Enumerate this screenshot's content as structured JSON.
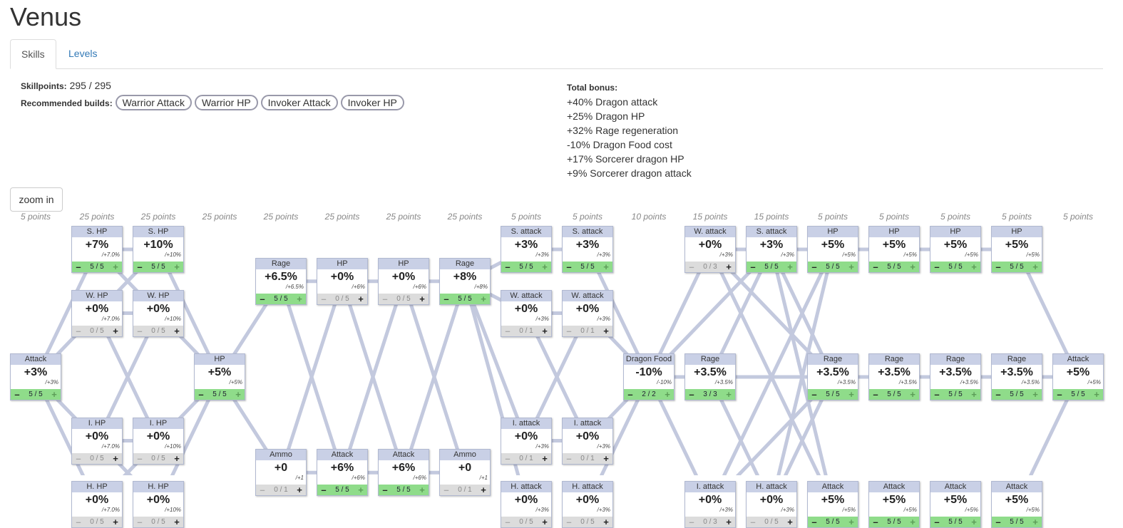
{
  "page": {
    "title": "Venus"
  },
  "tabs": [
    {
      "label": "Skills"
    },
    {
      "label": "Levels"
    }
  ],
  "skillpoints": {
    "label": "Skillpoints:",
    "value": "295 / 295"
  },
  "builds": {
    "label": "Recommended builds:",
    "items": [
      "Warrior Attack",
      "Warrior HP",
      "Invoker Attack",
      "Invoker HP"
    ]
  },
  "total": {
    "label": "Total bonus:",
    "lines": [
      "+40% Dragon attack",
      "+25% Dragon HP",
      "+32% Rage regeneration",
      "-10% Dragon Food cost",
      "+17% Sorcerer dragon HP",
      "+9% Sorcerer dragon attack"
    ]
  },
  "zoom_label": "zoom in",
  "columns": [
    "5 points",
    "25 points",
    "25 points",
    "25 points",
    "25 points",
    "25 points",
    "25 points",
    "25 points",
    "5 points",
    "5 points",
    "10 points",
    "15 points",
    "15 points",
    "5 points",
    "5 points",
    "5 points",
    "5 points",
    "5 points"
  ],
  "nodes": [
    {
      "id": "n1",
      "col": 0,
      "row": 2,
      "title": "Attack",
      "value": "+3%",
      "rate": "/+3%",
      "count": "5 / 5",
      "state": "full"
    },
    {
      "id": "n2a",
      "col": 1,
      "row": 0,
      "title": "S. HP",
      "value": "+7%",
      "rate": "/+7.0%",
      "count": "5 / 5",
      "state": "full"
    },
    {
      "id": "n2b",
      "col": 1,
      "row": 1,
      "title": "W. HP",
      "value": "+0%",
      "rate": "/+7.0%",
      "count": "0 / 5",
      "state": "empty"
    },
    {
      "id": "n2c",
      "col": 1,
      "row": 3,
      "title": "I. HP",
      "value": "+0%",
      "rate": "/+7.0%",
      "count": "0 / 5",
      "state": "empty"
    },
    {
      "id": "n2d",
      "col": 1,
      "row": 4,
      "title": "H. HP",
      "value": "+0%",
      "rate": "/+7.0%",
      "count": "0 / 5",
      "state": "empty"
    },
    {
      "id": "n3a",
      "col": 2,
      "row": 0,
      "title": "S. HP",
      "value": "+10%",
      "rate": "/+10%",
      "count": "5 / 5",
      "state": "full"
    },
    {
      "id": "n3b",
      "col": 2,
      "row": 1,
      "title": "W. HP",
      "value": "+0%",
      "rate": "/+10%",
      "count": "0 / 5",
      "state": "empty"
    },
    {
      "id": "n3c",
      "col": 2,
      "row": 3,
      "title": "I. HP",
      "value": "+0%",
      "rate": "/+10%",
      "count": "0 / 5",
      "state": "empty"
    },
    {
      "id": "n3d",
      "col": 2,
      "row": 4,
      "title": "H. HP",
      "value": "+0%",
      "rate": "/+10%",
      "count": "0 / 5",
      "state": "empty"
    },
    {
      "id": "n4",
      "col": 3,
      "row": 2,
      "title": "HP",
      "value": "+5%",
      "rate": "/+5%",
      "count": "5 / 5",
      "state": "full"
    },
    {
      "id": "n5a",
      "col": 4,
      "row": 0.5,
      "title": "Rage",
      "value": "+6.5%",
      "rate": "/+6.5%",
      "count": "5 / 5",
      "state": "full"
    },
    {
      "id": "n5b",
      "col": 4,
      "row": 3.5,
      "title": "Ammo",
      "value": "+0",
      "rate": "/+1",
      "count": "0 / 1",
      "state": "empty"
    },
    {
      "id": "n6a",
      "col": 5,
      "row": 0.5,
      "title": "HP",
      "value": "+0%",
      "rate": "/+6%",
      "count": "0 / 5",
      "state": "empty"
    },
    {
      "id": "n6b",
      "col": 5,
      "row": 3.5,
      "title": "Attack",
      "value": "+6%",
      "rate": "/+6%",
      "count": "5 / 5",
      "state": "full"
    },
    {
      "id": "n7a",
      "col": 6,
      "row": 0.5,
      "title": "HP",
      "value": "+0%",
      "rate": "/+6%",
      "count": "0 / 5",
      "state": "empty"
    },
    {
      "id": "n7b",
      "col": 6,
      "row": 3.5,
      "title": "Attack",
      "value": "+6%",
      "rate": "/+6%",
      "count": "5 / 5",
      "state": "full"
    },
    {
      "id": "n8a",
      "col": 7,
      "row": 0.5,
      "title": "Rage",
      "value": "+8%",
      "rate": "/+8%",
      "count": "5 / 5",
      "state": "full"
    },
    {
      "id": "n8b",
      "col": 7,
      "row": 3.5,
      "title": "Ammo",
      "value": "+0",
      "rate": "/+1",
      "count": "0 / 1",
      "state": "empty"
    },
    {
      "id": "n9a",
      "col": 8,
      "row": 0,
      "title": "S. attack",
      "value": "+3%",
      "rate": "/+3%",
      "count": "5 / 5",
      "state": "full"
    },
    {
      "id": "n9b",
      "col": 8,
      "row": 1,
      "title": "W. attack",
      "value": "+0%",
      "rate": "/+3%",
      "count": "0 / 1",
      "state": "empty"
    },
    {
      "id": "n9c",
      "col": 8,
      "row": 3,
      "title": "I. attack",
      "value": "+0%",
      "rate": "/+3%",
      "count": "0 / 1",
      "state": "empty"
    },
    {
      "id": "n9d",
      "col": 8,
      "row": 4,
      "title": "H. attack",
      "value": "+0%",
      "rate": "/+3%",
      "count": "0 / 5",
      "state": "empty"
    },
    {
      "id": "n10a",
      "col": 9,
      "row": 0,
      "title": "S. attack",
      "value": "+3%",
      "rate": "/+3%",
      "count": "5 / 5",
      "state": "full"
    },
    {
      "id": "n10b",
      "col": 9,
      "row": 1,
      "title": "W. attack",
      "value": "+0%",
      "rate": "/+3%",
      "count": "0 / 1",
      "state": "empty"
    },
    {
      "id": "n10c",
      "col": 9,
      "row": 3,
      "title": "I. attack",
      "value": "+0%",
      "rate": "/+3%",
      "count": "0 / 1",
      "state": "empty"
    },
    {
      "id": "n10d",
      "col": 9,
      "row": 4,
      "title": "H. attack",
      "value": "+0%",
      "rate": "/+3%",
      "count": "0 / 5",
      "state": "empty"
    },
    {
      "id": "n11",
      "col": 10,
      "row": 2,
      "title": "Dragon Food",
      "value": "-10%",
      "rate": "/-10%",
      "count": "2 / 2",
      "state": "full"
    },
    {
      "id": "n12a",
      "col": 11,
      "row": 0,
      "title": "W. attack",
      "value": "+0%",
      "rate": "/+3%",
      "count": "0 / 3",
      "state": "empty"
    },
    {
      "id": "n12b",
      "col": 11,
      "row": 2,
      "title": "Rage",
      "value": "+3.5%",
      "rate": "/+3.5%",
      "count": "3 / 3",
      "state": "full"
    },
    {
      "id": "n12c",
      "col": 11,
      "row": 4,
      "title": "I. attack",
      "value": "+0%",
      "rate": "/+3%",
      "count": "0 / 3",
      "state": "empty"
    },
    {
      "id": "n13a",
      "col": 12,
      "row": 0,
      "title": "S. attack",
      "value": "+3%",
      "rate": "/+3%",
      "count": "5 / 5",
      "state": "full"
    },
    {
      "id": "n13c",
      "col": 12,
      "row": 4,
      "title": "H. attack",
      "value": "+0%",
      "rate": "/+3%",
      "count": "0 / 5",
      "state": "empty"
    },
    {
      "id": "n14a",
      "col": 13,
      "row": 0,
      "title": "HP",
      "value": "+5%",
      "rate": "/+5%",
      "count": "5 / 5",
      "state": "full"
    },
    {
      "id": "n14b",
      "col": 13,
      "row": 2,
      "title": "Rage",
      "value": "+3.5%",
      "rate": "/+3.5%",
      "count": "5 / 5",
      "state": "full"
    },
    {
      "id": "n14c",
      "col": 13,
      "row": 4,
      "title": "Attack",
      "value": "+5%",
      "rate": "/+5%",
      "count": "5 / 5",
      "state": "full"
    },
    {
      "id": "n15a",
      "col": 14,
      "row": 0,
      "title": "HP",
      "value": "+5%",
      "rate": "/+5%",
      "count": "5 / 5",
      "state": "full"
    },
    {
      "id": "n15b",
      "col": 14,
      "row": 2,
      "title": "Rage",
      "value": "+3.5%",
      "rate": "/+3.5%",
      "count": "5 / 5",
      "state": "full"
    },
    {
      "id": "n15c",
      "col": 14,
      "row": 4,
      "title": "Attack",
      "value": "+5%",
      "rate": "/+5%",
      "count": "5 / 5",
      "state": "full"
    },
    {
      "id": "n16a",
      "col": 15,
      "row": 0,
      "title": "HP",
      "value": "+5%",
      "rate": "/+5%",
      "count": "5 / 5",
      "state": "full"
    },
    {
      "id": "n16b",
      "col": 15,
      "row": 2,
      "title": "Rage",
      "value": "+3.5%",
      "rate": "/+3.5%",
      "count": "5 / 5",
      "state": "full"
    },
    {
      "id": "n16c",
      "col": 15,
      "row": 4,
      "title": "Attack",
      "value": "+5%",
      "rate": "/+5%",
      "count": "5 / 5",
      "state": "full"
    },
    {
      "id": "n17a",
      "col": 16,
      "row": 0,
      "title": "HP",
      "value": "+5%",
      "rate": "/+5%",
      "count": "5 / 5",
      "state": "full"
    },
    {
      "id": "n17b",
      "col": 16,
      "row": 2,
      "title": "Rage",
      "value": "+3.5%",
      "rate": "/+3.5%",
      "count": "5 / 5",
      "state": "full"
    },
    {
      "id": "n17c",
      "col": 16,
      "row": 4,
      "title": "Attack",
      "value": "+5%",
      "rate": "/+5%",
      "count": "5 / 5",
      "state": "full"
    },
    {
      "id": "n18",
      "col": 17,
      "row": 2,
      "title": "Attack",
      "value": "+5%",
      "rate": "/+5%",
      "count": "5 / 5",
      "state": "full"
    }
  ],
  "edges": [
    [
      "n1",
      "n2a"
    ],
    [
      "n1",
      "n2b"
    ],
    [
      "n1",
      "n2c"
    ],
    [
      "n1",
      "n2d"
    ],
    [
      "n2a",
      "n3a"
    ],
    [
      "n2a",
      "n3b"
    ],
    [
      "n2b",
      "n3a"
    ],
    [
      "n2b",
      "n3b"
    ],
    [
      "n2b",
      "n3c"
    ],
    [
      "n2c",
      "n3b"
    ],
    [
      "n2c",
      "n3c"
    ],
    [
      "n2c",
      "n3d"
    ],
    [
      "n2d",
      "n3c"
    ],
    [
      "n2d",
      "n3d"
    ],
    [
      "n3a",
      "n4"
    ],
    [
      "n3b",
      "n4"
    ],
    [
      "n3c",
      "n4"
    ],
    [
      "n3d",
      "n4"
    ],
    [
      "n4",
      "n5a"
    ],
    [
      "n4",
      "n5b"
    ],
    [
      "n5a",
      "n6a"
    ],
    [
      "n5a",
      "n6b"
    ],
    [
      "n5b",
      "n6a"
    ],
    [
      "n5b",
      "n6b"
    ],
    [
      "n6a",
      "n7a"
    ],
    [
      "n6a",
      "n7b"
    ],
    [
      "n6b",
      "n7a"
    ],
    [
      "n6b",
      "n7b"
    ],
    [
      "n7a",
      "n8a"
    ],
    [
      "n7a",
      "n8b"
    ],
    [
      "n7b",
      "n8a"
    ],
    [
      "n7b",
      "n8b"
    ],
    [
      "n8a",
      "n9a"
    ],
    [
      "n8a",
      "n9b"
    ],
    [
      "n8a",
      "n9c"
    ],
    [
      "n8a",
      "n9d"
    ],
    [
      "n9a",
      "n10a"
    ],
    [
      "n9b",
      "n10b"
    ],
    [
      "n9b",
      "n10c"
    ],
    [
      "n9c",
      "n10b"
    ],
    [
      "n9c",
      "n10c"
    ],
    [
      "n9d",
      "n10d"
    ],
    [
      "n10a",
      "n11"
    ],
    [
      "n10b",
      "n11"
    ],
    [
      "n10c",
      "n11"
    ],
    [
      "n10d",
      "n11"
    ],
    [
      "n11",
      "n12a"
    ],
    [
      "n11",
      "n12b"
    ],
    [
      "n11",
      "n12c"
    ],
    [
      "n11",
      "n13a"
    ],
    [
      "n12a",
      "n13a"
    ],
    [
      "n12c",
      "n13c"
    ],
    [
      "n12b",
      "n14b"
    ],
    [
      "n12a",
      "n14b"
    ],
    [
      "n12a",
      "n14c"
    ],
    [
      "n12c",
      "n14a"
    ],
    [
      "n12c",
      "n14b"
    ],
    [
      "n13a",
      "n14a"
    ],
    [
      "n13a",
      "n14b"
    ],
    [
      "n13a",
      "n14c"
    ],
    [
      "n13c",
      "n14a"
    ],
    [
      "n13c",
      "n14b"
    ],
    [
      "n13c",
      "n14c"
    ],
    [
      "n12b",
      "n13a"
    ],
    [
      "n12b",
      "n13c"
    ],
    [
      "n13a",
      "n14a"
    ],
    [
      "n14a",
      "n15a"
    ],
    [
      "n14b",
      "n15b"
    ],
    [
      "n14c",
      "n15c"
    ],
    [
      "n15a",
      "n16a"
    ],
    [
      "n15b",
      "n16b"
    ],
    [
      "n15c",
      "n16c"
    ],
    [
      "n16a",
      "n17a"
    ],
    [
      "n16b",
      "n17b"
    ],
    [
      "n16c",
      "n17c"
    ],
    [
      "n17a",
      "n18"
    ],
    [
      "n17b",
      "n18"
    ],
    [
      "n17c",
      "n18"
    ]
  ]
}
